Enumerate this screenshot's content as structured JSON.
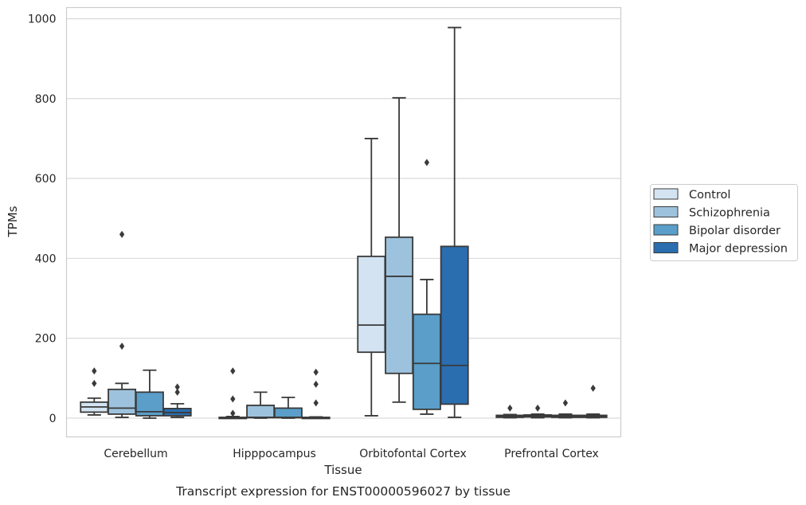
{
  "caption": "Transcript expression for ENST00000596027 by tissue",
  "chart_data": {
    "type": "box",
    "xlabel": "Tissue",
    "ylabel": "TPMs",
    "ylim": [
      -47,
      1028
    ],
    "yticks": [
      0,
      200,
      400,
      600,
      800,
      1000
    ],
    "grid": "horizontal",
    "legend_position": "right",
    "categories": [
      "Cerebellum",
      "Hipppocampus",
      "Orbitofontal Cortex",
      "Prefrontal Cortex"
    ],
    "series": [
      {
        "name": "Control",
        "color": "#d3e3f2",
        "boxes": [
          {
            "whislo": 8,
            "q1": 15,
            "med": 28,
            "q3": 40,
            "whishi": 50,
            "fliers": [
              87,
              118
            ]
          },
          {
            "whislo": 0,
            "q1": 0,
            "med": 1,
            "q3": 2,
            "whishi": 4,
            "fliers": [
              12,
              48,
              118
            ]
          },
          {
            "whislo": 6,
            "q1": 165,
            "med": 233,
            "q3": 405,
            "whishi": 700,
            "fliers": []
          },
          {
            "whislo": 1,
            "q1": 2,
            "med": 4,
            "q3": 7,
            "whishi": 9,
            "fliers": [
              25
            ]
          }
        ]
      },
      {
        "name": "Schizophrenia",
        "color": "#9dc2dd",
        "boxes": [
          {
            "whislo": 2,
            "q1": 10,
            "med": 25,
            "q3": 72,
            "whishi": 87,
            "fliers": [
              180,
              460
            ]
          },
          {
            "whislo": 0,
            "q1": 1,
            "med": 2,
            "q3": 32,
            "whishi": 65,
            "fliers": []
          },
          {
            "whislo": 40,
            "q1": 112,
            "med": 355,
            "q3": 453,
            "whishi": 802,
            "fliers": []
          },
          {
            "whislo": 1,
            "q1": 3,
            "med": 5,
            "q3": 8,
            "whishi": 10,
            "fliers": [
              25
            ]
          }
        ]
      },
      {
        "name": "Bipolar disorder",
        "color": "#5a9ec9",
        "boxes": [
          {
            "whislo": 0,
            "q1": 6,
            "med": 16,
            "q3": 65,
            "whishi": 120,
            "fliers": []
          },
          {
            "whislo": 0,
            "q1": 1,
            "med": 2,
            "q3": 25,
            "whishi": 52,
            "fliers": []
          },
          {
            "whislo": 10,
            "q1": 22,
            "med": 137,
            "q3": 260,
            "whishi": 347,
            "fliers": [
              640
            ]
          },
          {
            "whislo": 1,
            "q1": 2,
            "med": 4,
            "q3": 7,
            "whishi": 10,
            "fliers": [
              38
            ]
          }
        ]
      },
      {
        "name": "Major depression",
        "color": "#2a6eb0",
        "boxes": [
          {
            "whislo": 2,
            "q1": 6,
            "med": 14,
            "q3": 24,
            "whishi": 36,
            "fliers": [
              65,
              78
            ]
          },
          {
            "whislo": 0,
            "q1": 0,
            "med": 1,
            "q3": 2,
            "whishi": 3,
            "fliers": [
              38,
              85,
              115
            ]
          },
          {
            "whislo": 2,
            "q1": 35,
            "med": 132,
            "q3": 430,
            "whishi": 978,
            "fliers": []
          },
          {
            "whislo": 1,
            "q1": 2,
            "med": 4,
            "q3": 7,
            "whishi": 10,
            "fliers": [
              75
            ]
          }
        ]
      }
    ]
  }
}
